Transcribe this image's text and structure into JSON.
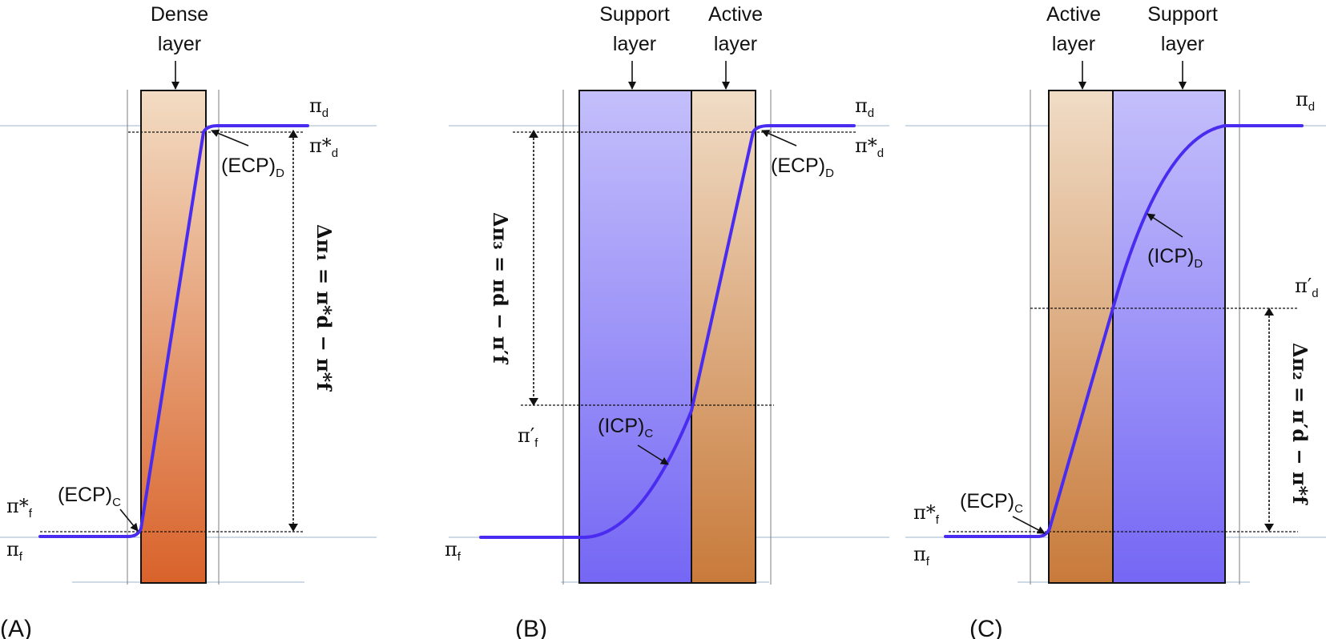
{
  "panels": {
    "A": {
      "panel_label": "(A)",
      "layer_title": [
        "Dense",
        "layer"
      ],
      "pi_d": "π",
      "pi_d_sub": "d",
      "pi_star_d": "π*",
      "pi_star_d_sub": "d",
      "ecp_d": "(ECP)",
      "ecp_d_sub": "D",
      "ecp_c": "(ECP)",
      "ecp_c_sub": "C",
      "pi_star_f": "π*",
      "pi_star_f_sub": "f",
      "pi_f": "π",
      "pi_f_sub": "f",
      "delta_eq": "Δπ₁ = π*d − π*f"
    },
    "B": {
      "panel_label": "(B)",
      "support_title": [
        "Support",
        "layer"
      ],
      "active_title": [
        "Active",
        "layer"
      ],
      "pi_d": "π",
      "pi_d_sub": "d",
      "pi_star_d": "π*",
      "pi_star_d_sub": "d",
      "ecp_d": "(ECP)",
      "ecp_d_sub": "D",
      "icp_c": "(ICP)",
      "icp_c_sub": "C",
      "pi_prime_f": "π′",
      "pi_prime_f_sub": "f",
      "pi_f": "π",
      "pi_f_sub": "f",
      "delta_eq": "Δπ₃ = πd − π′f"
    },
    "C": {
      "panel_label": "(C)",
      "active_title": [
        "Active",
        "layer"
      ],
      "support_title": [
        "Support",
        "layer"
      ],
      "pi_d": "π",
      "pi_d_sub": "d",
      "icp_d": "(ICP)",
      "icp_d_sub": "D",
      "pi_prime_d": "π′",
      "pi_prime_d_sub": "d",
      "ecp_c": "(ECP)",
      "ecp_c_sub": "C",
      "pi_star_f": "π*",
      "pi_star_f_sub": "f",
      "pi_f": "π",
      "pi_f_sub": "f",
      "delta_eq": "Δπ₂ = π′d − π*f"
    }
  },
  "colors": {
    "curve": "#4a2cf0",
    "dense_top": "#f2dcc3",
    "dense_bottom": "#d9622a",
    "active_top": "#f0dcc6",
    "active_bottom": "#c87a3a",
    "support_top": "#c4bffb",
    "support_bottom": "#7567f4"
  }
}
